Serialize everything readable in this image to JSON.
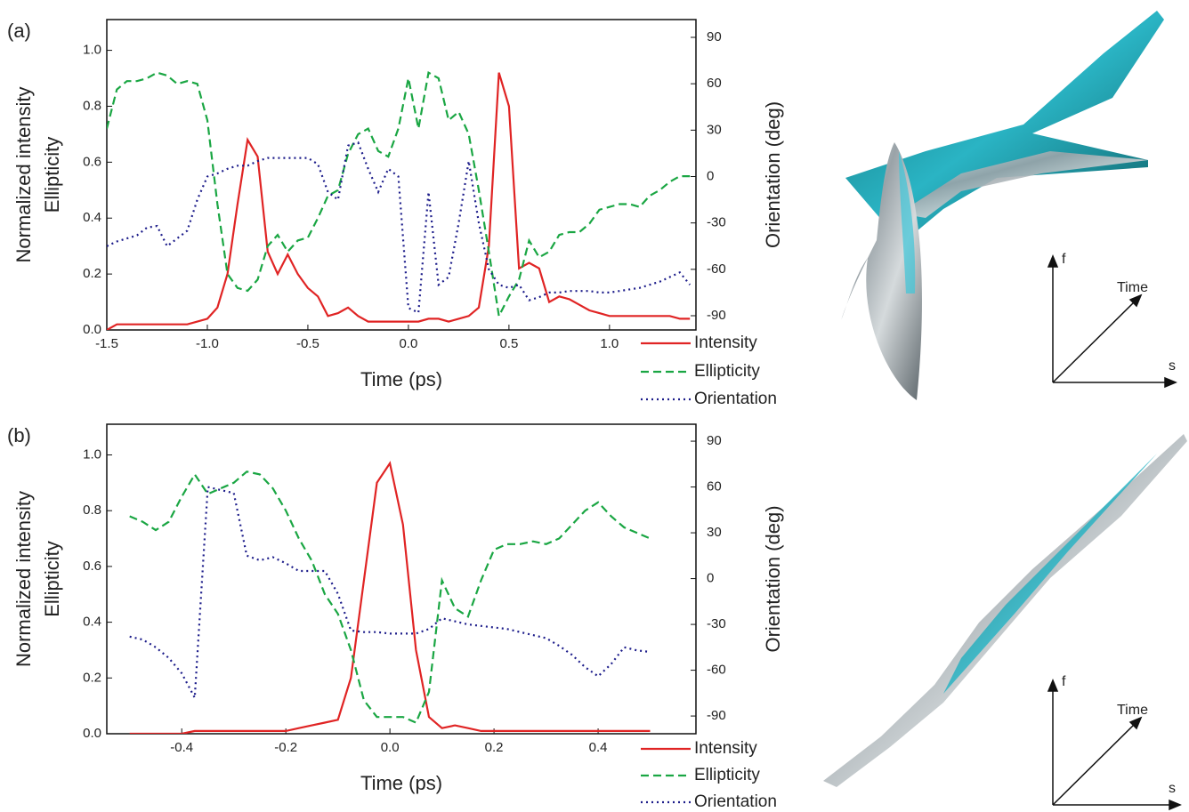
{
  "chart_data": [
    {
      "type": "line",
      "panel": "(a)",
      "x_label": "Time (ps)",
      "y_label": [
        "Normalized intensity",
        "Ellipticity"
      ],
      "y2_label": "Orientation (deg)",
      "xlim": [
        -1.5,
        1.43
      ],
      "ylim": [
        0,
        1.11
      ],
      "y2lim": [
        -99.2,
        101.5
      ],
      "xticks": [
        -1.5,
        {
          "value": -1,
          "label": "-1.0"
        },
        -0.5,
        {
          "value": 0,
          "label": "0.0"
        },
        0.5,
        {
          "value": 1,
          "label": "1.0"
        }
      ],
      "yticks": [
        {
          "value": 0,
          "label": "0.0"
        },
        0.2,
        0.4,
        0.6,
        0.8,
        {
          "value": 1,
          "label": "1.0"
        }
      ],
      "y2ticks": [
        -90,
        -60,
        -30,
        0,
        30,
        60,
        90
      ],
      "legend": "below-right",
      "x": [
        -1.5,
        -1.45,
        -1.4,
        -1.35,
        -1.3,
        -1.25,
        -1.2,
        -1.15,
        -1.1,
        -1.05,
        -1.0,
        -0.95,
        -0.9,
        -0.85,
        -0.8,
        -0.75,
        -0.7,
        -0.65,
        -0.6,
        -0.55,
        -0.5,
        -0.45,
        -0.4,
        -0.35,
        -0.3,
        -0.25,
        -0.2,
        -0.15,
        -0.1,
        -0.05,
        0.0,
        0.05,
        0.1,
        0.15,
        0.2,
        0.25,
        0.3,
        0.35,
        0.4,
        0.45,
        0.5,
        0.55,
        0.6,
        0.65,
        0.7,
        0.75,
        0.8,
        0.85,
        0.9,
        0.95,
        1.0,
        1.05,
        1.1,
        1.15,
        1.2,
        1.25,
        1.3,
        1.35,
        1.4
      ],
      "series": [
        {
          "name": "Intensity",
          "color": "#e02424",
          "style": "solid",
          "axis": "y",
          "values": [
            0.0,
            0.02,
            0.02,
            0.02,
            0.02,
            0.02,
            0.02,
            0.02,
            0.02,
            0.03,
            0.04,
            0.08,
            0.2,
            0.45,
            0.68,
            0.62,
            0.28,
            0.2,
            0.27,
            0.2,
            0.15,
            0.12,
            0.05,
            0.06,
            0.08,
            0.05,
            0.03,
            0.03,
            0.03,
            0.03,
            0.03,
            0.03,
            0.04,
            0.04,
            0.03,
            0.04,
            0.05,
            0.08,
            0.3,
            0.92,
            0.8,
            0.22,
            0.24,
            0.22,
            0.1,
            0.12,
            0.11,
            0.09,
            0.07,
            0.06,
            0.05,
            0.05,
            0.05,
            0.05,
            0.05,
            0.05,
            0.05,
            0.04,
            0.04
          ]
        },
        {
          "name": "Ellipticity",
          "color": "#1aa643",
          "style": "dashed",
          "axis": "y",
          "values": [
            0.72,
            0.86,
            0.89,
            0.89,
            0.9,
            0.92,
            0.91,
            0.88,
            0.89,
            0.88,
            0.75,
            0.45,
            0.2,
            0.15,
            0.14,
            0.18,
            0.3,
            0.34,
            0.28,
            0.32,
            0.33,
            0.4,
            0.48,
            0.5,
            0.63,
            0.7,
            0.72,
            0.64,
            0.62,
            0.72,
            0.9,
            0.72,
            0.92,
            0.9,
            0.75,
            0.78,
            0.7,
            0.5,
            0.28,
            0.05,
            0.12,
            0.18,
            0.32,
            0.26,
            0.28,
            0.34,
            0.35,
            0.35,
            0.38,
            0.43,
            0.44,
            0.45,
            0.45,
            0.44,
            0.48,
            0.5,
            0.53,
            0.55,
            0.55
          ]
        },
        {
          "name": "Orientation",
          "color": "#1c1c8a",
          "style": "dotted",
          "axis": "y2",
          "values": [
            -45,
            -42,
            -40,
            -38,
            -33,
            -32,
            -45,
            -40,
            -35,
            -15,
            0,
            2,
            5,
            7,
            7,
            10,
            12,
            12,
            12,
            12,
            12,
            8,
            -10,
            -15,
            20,
            22,
            5,
            -10,
            5,
            0,
            -85,
            -88,
            -10,
            -70,
            -65,
            -30,
            10,
            -30,
            -60,
            -70,
            -72,
            -70,
            -80,
            -78,
            -75,
            -75,
            -74,
            -74,
            -74,
            -75,
            -75,
            -74,
            -73,
            -72,
            -70,
            -68,
            -65,
            -62,
            -70
          ]
        }
      ],
      "axes_labels": [
        "f",
        "Time",
        "s"
      ]
    },
    {
      "type": "line",
      "panel": "(b)",
      "x_label": "Time (ps)",
      "y_label": [
        "Normalized intensity",
        "Ellipticity"
      ],
      "y2_label": "Orientation (deg)",
      "xlim": [
        -0.544,
        0.588
      ],
      "ylim": [
        0,
        1.11
      ],
      "y2lim": [
        -101.6,
        101.1
      ],
      "xticks": [
        -0.4,
        -0.2,
        {
          "value": 0,
          "label": "0.0"
        },
        0.2,
        0.4
      ],
      "yticks": [
        {
          "value": 0,
          "label": "0.0"
        },
        0.2,
        0.4,
        0.6,
        0.8,
        {
          "value": 1,
          "label": "1.0"
        }
      ],
      "y2ticks": [
        -90,
        -60,
        -30,
        0,
        30,
        60,
        90
      ],
      "legend": "below-right",
      "x": [
        -0.5,
        -0.475,
        -0.45,
        -0.425,
        -0.4,
        -0.375,
        -0.35,
        -0.325,
        -0.3,
        -0.275,
        -0.25,
        -0.225,
        -0.2,
        -0.175,
        -0.15,
        -0.125,
        -0.1,
        -0.075,
        -0.05,
        -0.025,
        0.0,
        0.025,
        0.05,
        0.075,
        0.1,
        0.125,
        0.15,
        0.175,
        0.2,
        0.225,
        0.25,
        0.275,
        0.3,
        0.325,
        0.35,
        0.375,
        0.4,
        0.425,
        0.45,
        0.475,
        0.5
      ],
      "series": [
        {
          "name": "Intensity",
          "color": "#e02424",
          "style": "solid",
          "axis": "y",
          "values": [
            0,
            0,
            0,
            0,
            0,
            0.01,
            0.01,
            0.01,
            0.01,
            0.01,
            0.01,
            0.01,
            0.01,
            0.02,
            0.03,
            0.04,
            0.05,
            0.2,
            0.55,
            0.9,
            0.97,
            0.75,
            0.3,
            0.06,
            0.02,
            0.03,
            0.02,
            0.01,
            0.01,
            0.01,
            0.01,
            0.01,
            0.01,
            0.01,
            0.01,
            0.01,
            0.01,
            0.01,
            0.01,
            0.01,
            0.01
          ]
        },
        {
          "name": "Ellipticity",
          "color": "#1aa643",
          "style": "dashed",
          "axis": "y",
          "values": [
            0.78,
            0.76,
            0.73,
            0.76,
            0.85,
            0.93,
            0.86,
            0.88,
            0.9,
            0.94,
            0.93,
            0.88,
            0.8,
            0.7,
            0.62,
            0.5,
            0.43,
            0.3,
            0.12,
            0.06,
            0.06,
            0.06,
            0.04,
            0.15,
            0.55,
            0.45,
            0.42,
            0.55,
            0.66,
            0.68,
            0.68,
            0.69,
            0.68,
            0.7,
            0.75,
            0.8,
            0.83,
            0.78,
            0.74,
            0.72,
            0.7
          ]
        },
        {
          "name": "Orientation",
          "color": "#1c1c8a",
          "style": "dotted",
          "axis": "y2",
          "values": [
            -38,
            -40,
            -45,
            -52,
            -62,
            -78,
            60,
            58,
            56,
            15,
            12,
            14,
            10,
            5,
            5,
            5,
            -10,
            -34,
            -35,
            -35,
            -36,
            -36,
            -36,
            -33,
            -26,
            -28,
            -30,
            -31,
            -32,
            -33,
            -35,
            -37,
            -39,
            -44,
            -50,
            -58,
            -64,
            -56,
            -45,
            -47,
            -48
          ]
        }
      ],
      "axes_labels": [
        "f",
        "Time",
        "s"
      ]
    }
  ]
}
